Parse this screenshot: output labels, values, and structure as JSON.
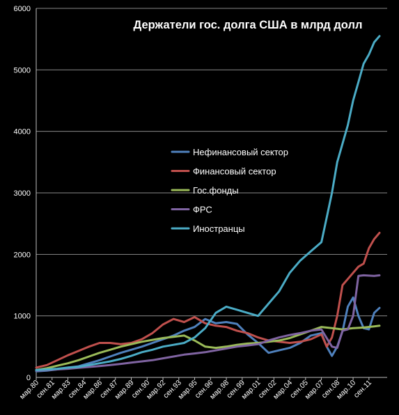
{
  "chart_data": {
    "type": "line",
    "title": "Держатели гос. долга США в млрд долл",
    "xlabel": "",
    "ylabel": "",
    "ylim": [
      0,
      6000
    ],
    "yticks": [
      0,
      1000,
      2000,
      3000,
      4000,
      5000,
      6000
    ],
    "grid": true,
    "legend_position": "center",
    "x_tick_labels": [
      "мар.80",
      "сен.81",
      "мар.83",
      "сен.84",
      "мар.86",
      "сен.87",
      "мар.89",
      "сен.90",
      "мар.92",
      "сен.93",
      "мар.95",
      "сен.96",
      "мар.98",
      "сен.99",
      "мар.01",
      "сен.02",
      "мар.04",
      "сен.05",
      "мар.07",
      "сен.08",
      "мар.10",
      "сен.11"
    ],
    "x_start_year": 1980.0,
    "x_tick_step_years": 1.5,
    "series": [
      {
        "name": "Нефинансовый сектор",
        "color": "#4F81BD",
        "x": [
          1980,
          1981,
          1982,
          1983,
          1984,
          1985,
          1986,
          1987,
          1988,
          1989,
          1990,
          1991,
          1992,
          1993,
          1994,
          1995,
          1996,
          1997,
          1998,
          1999,
          2000,
          2001,
          2002,
          2003,
          2004,
          2005,
          2006,
          2007,
          2007.5,
          2008,
          2008.5,
          2009,
          2009.5,
          2010,
          2010.5,
          2011,
          2011.5,
          2012,
          2012.5
        ],
        "values": [
          100,
          110,
          130,
          160,
          180,
          230,
          280,
          340,
          400,
          450,
          500,
          560,
          620,
          680,
          760,
          820,
          950,
          880,
          900,
          870,
          700,
          560,
          400,
          440,
          480,
          560,
          680,
          720,
          500,
          350,
          500,
          750,
          1150,
          1300,
          1000,
          800,
          780,
          1050,
          1130
        ]
      },
      {
        "name": "Финансовый сектор",
        "color": "#C0504D",
        "x": [
          1980,
          1981,
          1982,
          1983,
          1984,
          1985,
          1986,
          1987,
          1988,
          1989,
          1990,
          1991,
          1992,
          1993,
          1994,
          1995,
          1996,
          1997,
          1998,
          1999,
          2000,
          2001,
          2002,
          2003,
          2004,
          2005,
          2006,
          2007,
          2007.5,
          2008,
          2008.5,
          2009,
          2009.5,
          2010,
          2010.5,
          2011,
          2011.5,
          2012,
          2012.5
        ],
        "values": [
          160,
          200,
          280,
          360,
          430,
          500,
          560,
          560,
          540,
          560,
          620,
          720,
          860,
          950,
          900,
          980,
          880,
          840,
          820,
          760,
          720,
          650,
          600,
          580,
          560,
          580,
          620,
          700,
          500,
          650,
          1000,
          1500,
          1600,
          1700,
          1800,
          1850,
          2100,
          2250,
          2350
        ]
      },
      {
        "name": "Гос.фонды",
        "color": "#9BBB59",
        "x": [
          1980,
          1981,
          1982,
          1983,
          1984,
          1985,
          1986,
          1987,
          1988,
          1989,
          1990,
          1991,
          1992,
          1993,
          1994,
          1995,
          1996,
          1997,
          1998,
          1999,
          2000,
          2001,
          2002,
          2003,
          2004,
          2005,
          2006,
          2007,
          2008,
          2009,
          2010,
          2011,
          2012,
          2012.5
        ],
        "values": [
          120,
          150,
          190,
          230,
          280,
          340,
          400,
          450,
          500,
          540,
          580,
          610,
          640,
          660,
          680,
          600,
          500,
          480,
          500,
          530,
          550,
          560,
          580,
          600,
          640,
          700,
          760,
          820,
          800,
          780,
          800,
          810,
          830,
          840
        ]
      },
      {
        "name": "ФРС",
        "color": "#8064A2",
        "x": [
          1980,
          1981,
          1982,
          1983,
          1984,
          1985,
          1986,
          1987,
          1988,
          1989,
          1990,
          1991,
          1992,
          1993,
          1994,
          1995,
          1996,
          1997,
          1998,
          1999,
          2000,
          2001,
          2002,
          2003,
          2004,
          2005,
          2006,
          2007,
          2008,
          2008.5,
          2009,
          2009.5,
          2010,
          2010.5,
          2011,
          2012,
          2012.5
        ],
        "values": [
          110,
          120,
          130,
          140,
          155,
          170,
          185,
          200,
          220,
          240,
          260,
          280,
          310,
          340,
          370,
          390,
          410,
          440,
          470,
          500,
          520,
          540,
          600,
          650,
          690,
          720,
          760,
          780,
          500,
          480,
          760,
          780,
          1000,
          1650,
          1660,
          1650,
          1660
        ]
      },
      {
        "name": "Иностранцы",
        "color": "#4BACC6",
        "x": [
          1980,
          1981,
          1982,
          1983,
          1984,
          1985,
          1986,
          1987,
          1988,
          1989,
          1990,
          1991,
          1992,
          1993,
          1994,
          1995,
          1996,
          1997,
          1998,
          1999,
          2000,
          2001,
          2002,
          2003,
          2004,
          2005,
          2006,
          2007,
          2007.5,
          2008,
          2008.5,
          2009,
          2009.5,
          2010,
          2010.5,
          2011,
          2011.5,
          2012,
          2012.5
        ],
        "values": [
          120,
          130,
          140,
          160,
          170,
          200,
          230,
          260,
          300,
          350,
          410,
          450,
          500,
          530,
          560,
          650,
          800,
          1050,
          1150,
          1100,
          1050,
          1000,
          1200,
          1400,
          1700,
          1900,
          2050,
          2200,
          2600,
          3000,
          3500,
          3800,
          4100,
          4500,
          4800,
          5100,
          5250,
          5450,
          5550
        ]
      }
    ]
  }
}
